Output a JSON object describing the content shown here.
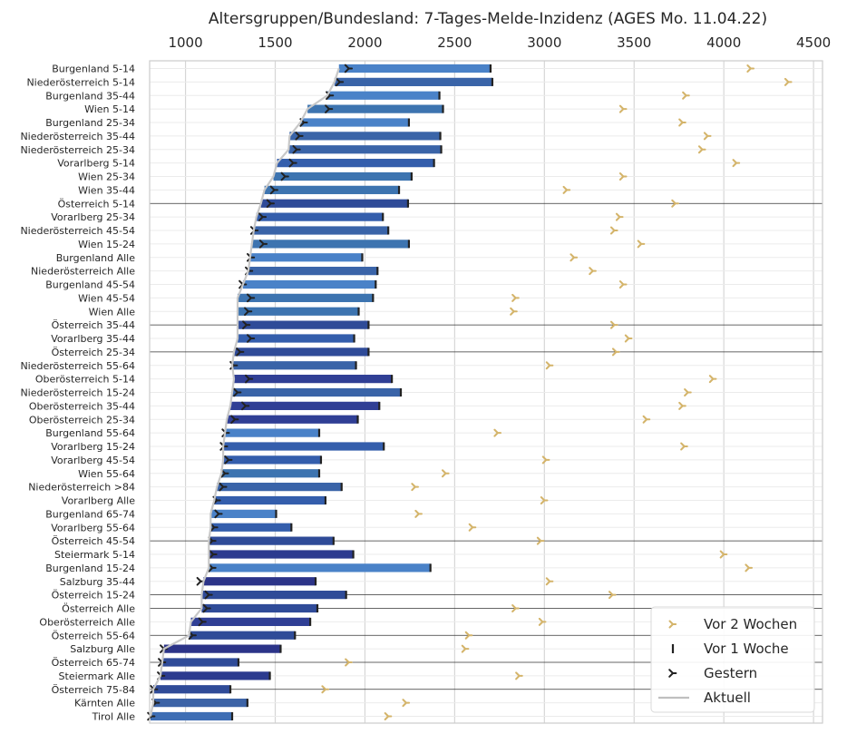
{
  "chart_data": {
    "type": "bar",
    "orientation": "horizontal",
    "title": "Altersgruppen/Bundesland: 7-Tages-Melde-Inzidenz (AGES Mo. 11.04.22)",
    "xaxis_position": "top",
    "xlim": [
      800,
      4550
    ],
    "xticks": [
      1000,
      1500,
      2000,
      2500,
      3000,
      3500,
      4000,
      4500
    ],
    "grid": true,
    "legend_position": "bottom-right",
    "legend": [
      {
        "name": "Vor 2 Wochen",
        "color": "#d4b46a"
      },
      {
        "name": "Vor 1 Woche",
        "color": "#222222"
      },
      {
        "name": "Gestern",
        "color": "#222222"
      },
      {
        "name": "Aktuell",
        "color": "#bfbfbf"
      }
    ],
    "colors": {
      "Burgenland": "#4a82c8",
      "Niederösterreich": "#3a64a8",
      "Wien": "#3d74b0",
      "Vorarlberg": "#345eac",
      "Österreich": "#2f4b98",
      "Oberösterreich": "#303f95",
      "Steiermark": "#2c3b8f",
      "Salzburg": "#2c3488",
      "Kärnten": "#3c63a6",
      "Tirol": "#3e6eb4"
    },
    "rows": [
      {
        "label": "Burgenland 5-14",
        "aktuell": 1855,
        "gestern": 1910,
        "vor1": 2700,
        "vor2": 4150
      },
      {
        "label": "Niederösterreich 5-14",
        "aktuell": 1830,
        "gestern": 1860,
        "vor1": 2710,
        "vor2": 4360
      },
      {
        "label": "Burgenland 35-44",
        "aktuell": 1790,
        "gestern": 1805,
        "vor1": 2415,
        "vor2": 3790
      },
      {
        "label": "Wien 5-14",
        "aktuell": 1680,
        "gestern": 1800,
        "vor1": 2435,
        "vor2": 3440
      },
      {
        "label": "Burgenland 25-34",
        "aktuell": 1640,
        "gestern": 1660,
        "vor1": 2245,
        "vor2": 3770
      },
      {
        "label": "Niederösterreich 35-44",
        "aktuell": 1580,
        "gestern": 1635,
        "vor1": 2420,
        "vor2": 3910
      },
      {
        "label": "Niederösterreich 25-34",
        "aktuell": 1575,
        "gestern": 1620,
        "vor1": 2425,
        "vor2": 3880
      },
      {
        "label": "Vorarlberg 5-14",
        "aktuell": 1510,
        "gestern": 1600,
        "vor1": 2385,
        "vor2": 4070
      },
      {
        "label": "Wien 25-34",
        "aktuell": 1490,
        "gestern": 1555,
        "vor1": 2260,
        "vor2": 3440
      },
      {
        "label": "Wien 35-44",
        "aktuell": 1440,
        "gestern": 1495,
        "vor1": 2190,
        "vor2": 3125
      },
      {
        "label": "Österreich 5-14",
        "aktuell": 1420,
        "gestern": 1475,
        "vor1": 2240,
        "vor2": 3730
      },
      {
        "label": "Vorarlberg 25-34",
        "aktuell": 1395,
        "gestern": 1430,
        "vor1": 2100,
        "vor2": 3420
      },
      {
        "label": "Niederösterreich 45-54",
        "aktuell": 1380,
        "gestern": 1385,
        "vor1": 2130,
        "vor2": 3390
      },
      {
        "label": "Wien 15-24",
        "aktuell": 1370,
        "gestern": 1435,
        "vor1": 2245,
        "vor2": 3540
      },
      {
        "label": "Burgenland Alle",
        "aktuell": 1360,
        "gestern": 1365,
        "vor1": 1985,
        "vor2": 3165
      },
      {
        "label": "Niederösterreich Alle",
        "aktuell": 1350,
        "gestern": 1355,
        "vor1": 2070,
        "vor2": 3270
      },
      {
        "label": "Burgenland 45-54",
        "aktuell": 1320,
        "gestern": 1320,
        "vor1": 2060,
        "vor2": 3440
      },
      {
        "label": "Wien 45-54",
        "aktuell": 1290,
        "gestern": 1365,
        "vor1": 2045,
        "vor2": 2840
      },
      {
        "label": "Wien Alle",
        "aktuell": 1290,
        "gestern": 1350,
        "vor1": 1965,
        "vor2": 2830
      },
      {
        "label": "Österreich 35-44",
        "aktuell": 1290,
        "gestern": 1340,
        "vor1": 2020,
        "vor2": 3390
      },
      {
        "label": "Vorarlberg 35-44",
        "aktuell": 1290,
        "gestern": 1365,
        "vor1": 1940,
        "vor2": 3470
      },
      {
        "label": "Österreich 25-34",
        "aktuell": 1270,
        "gestern": 1305,
        "vor1": 2020,
        "vor2": 3400
      },
      {
        "label": "Niederösterreich 55-64",
        "aktuell": 1260,
        "gestern": 1270,
        "vor1": 1950,
        "vor2": 3030
      },
      {
        "label": "Oberösterreich 5-14",
        "aktuell": 1270,
        "gestern": 1355,
        "vor1": 2150,
        "vor2": 3940
      },
      {
        "label": "Niederösterreich 15-24",
        "aktuell": 1260,
        "gestern": 1290,
        "vor1": 2200,
        "vor2": 3800
      },
      {
        "label": "Oberösterreich 35-44",
        "aktuell": 1250,
        "gestern": 1335,
        "vor1": 2080,
        "vor2": 3770
      },
      {
        "label": "Oberösterreich 25-34",
        "aktuell": 1230,
        "gestern": 1275,
        "vor1": 1960,
        "vor2": 3570
      },
      {
        "label": "Burgenland 55-64",
        "aktuell": 1220,
        "gestern": 1225,
        "vor1": 1745,
        "vor2": 2740
      },
      {
        "label": "Vorarlberg 15-24",
        "aktuell": 1210,
        "gestern": 1215,
        "vor1": 2105,
        "vor2": 3780
      },
      {
        "label": "Vorarlberg 45-54",
        "aktuell": 1210,
        "gestern": 1240,
        "vor1": 1755,
        "vor2": 3010
      },
      {
        "label": "Wien 55-64",
        "aktuell": 1200,
        "gestern": 1220,
        "vor1": 1745,
        "vor2": 2450
      },
      {
        "label": "Niederösterreich >84",
        "aktuell": 1175,
        "gestern": 1210,
        "vor1": 1870,
        "vor2": 2280
      },
      {
        "label": "Vorarlberg Alle",
        "aktuell": 1160,
        "gestern": 1175,
        "vor1": 1780,
        "vor2": 3000
      },
      {
        "label": "Burgenland 65-74",
        "aktuell": 1140,
        "gestern": 1185,
        "vor1": 1505,
        "vor2": 2300
      },
      {
        "label": "Vorarlberg 55-64",
        "aktuell": 1140,
        "gestern": 1160,
        "vor1": 1590,
        "vor2": 2600
      },
      {
        "label": "Österreich 45-54",
        "aktuell": 1130,
        "gestern": 1150,
        "vor1": 1825,
        "vor2": 2980
      },
      {
        "label": "Steiermark 5-14",
        "aktuell": 1130,
        "gestern": 1155,
        "vor1": 1935,
        "vor2": 4000
      },
      {
        "label": "Burgenland 15-24",
        "aktuell": 1130,
        "gestern": 1150,
        "vor1": 2365,
        "vor2": 4140
      },
      {
        "label": "Salzburg 35-44",
        "aktuell": 1100,
        "gestern": 1085,
        "vor1": 1725,
        "vor2": 3030
      },
      {
        "label": "Österreich 15-24",
        "aktuell": 1090,
        "gestern": 1130,
        "vor1": 1895,
        "vor2": 3380
      },
      {
        "label": "Österreich Alle",
        "aktuell": 1090,
        "gestern": 1120,
        "vor1": 1735,
        "vor2": 2840
      },
      {
        "label": "Oberösterreich Alle",
        "aktuell": 1030,
        "gestern": 1095,
        "vor1": 1695,
        "vor2": 2990
      },
      {
        "label": "Österreich 55-64",
        "aktuell": 1020,
        "gestern": 1040,
        "vor1": 1610,
        "vor2": 2580
      },
      {
        "label": "Salzburg Alle",
        "aktuell": 880,
        "gestern": 880,
        "vor1": 1530,
        "vor2": 2560
      },
      {
        "label": "Österreich 65-74",
        "aktuell": 870,
        "gestern": 870,
        "vor1": 1295,
        "vor2": 1910
      },
      {
        "label": "Steiermark Alle",
        "aktuell": 860,
        "gestern": 865,
        "vor1": 1470,
        "vor2": 2860
      },
      {
        "label": "Österreich 75-84",
        "aktuell": 820,
        "gestern": 825,
        "vor1": 1250,
        "vor2": 1780
      },
      {
        "label": "Kärnten Alle",
        "aktuell": 820,
        "gestern": 835,
        "vor1": 1345,
        "vor2": 2230
      },
      {
        "label": "Tirol Alle",
        "aktuell": 805,
        "gestern": 810,
        "vor1": 1260,
        "vor2": 2130
      }
    ]
  }
}
